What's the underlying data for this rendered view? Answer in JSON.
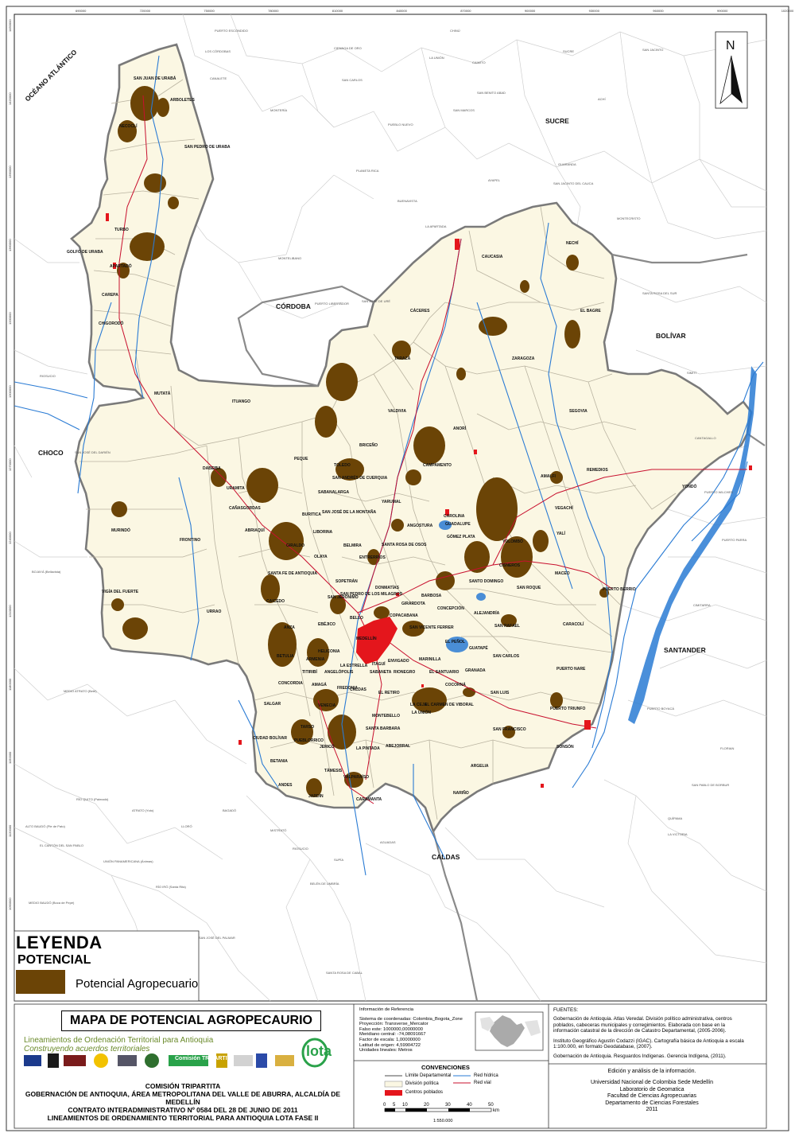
{
  "map": {
    "neatline_top": [
      "690000",
      "720000",
      "750000",
      "780000",
      "810000",
      "840000",
      "870000",
      "900000",
      "930000",
      "960000",
      "990000",
      "1020000"
    ],
    "neatline_left": [
      "1450000",
      "1420000",
      "1390000",
      "1360000",
      "1330000",
      "1300000",
      "1270000",
      "1240000",
      "1210000",
      "1180000",
      "1150000",
      "1120000",
      "1090000"
    ],
    "departments": [
      "SUCRE",
      "CÓRDOBA",
      "BOLÍVAR",
      "SANTANDER",
      "CALDAS",
      "CHOCÓ",
      "OCÉANO ATLÁNTICO"
    ],
    "municipios": [
      "SAN JUAN DE URABÁ",
      "ARBOLETES",
      "NECOCLÍ",
      "SAN PEDRO DE URABÁ",
      "TURBO",
      "APARTADÓ",
      "CAREPA",
      "CHIGORODÓ",
      "MUTATÁ",
      "ITUANGO",
      "DABEIBA",
      "URAMITA",
      "PEQUE",
      "CAÑASGORDAS",
      "FRONTINO",
      "ABRIAQUÍ",
      "GIRALDO",
      "MURINDÓ",
      "VIGÍA DEL FUERTE",
      "URRAO",
      "CAICEDO",
      "ANZÁ",
      "BETULIA",
      "CONCORDIA",
      "SALGAR",
      "CIUDAD BOLÍVAR",
      "BETANIA",
      "ANDES",
      "JARDÍN",
      "HISPANIA",
      "PUEBLORRICO",
      "TARSO",
      "JERICÓ",
      "TÁMESIS",
      "VALPARAÍSO",
      "CARAMANTA",
      "FREDONIA",
      "VENECIA",
      "SANTA BÁRBARA",
      "MONTEBELLO",
      "LA CEJA",
      "ABEJORRAL",
      "EL RETIRO",
      "CALDAS",
      "MEDELLÍN",
      "BELLO",
      "COPACABANA",
      "GIRARDOTA",
      "BARBOSA",
      "SAN VICENTE FERRER",
      "CONCEPCIÓN",
      "ALEJANDRÍA",
      "EL PEÑOL",
      "GUATAPÉ",
      "GRANADA",
      "MARINILLA",
      "RIONEGRO",
      "EL SANTUARIO",
      "COCORNÁ",
      "SAN LUIS",
      "SAN CARLOS",
      "SAN RAFAEL",
      "SAN FRANCISCO",
      "PUERTO TRIUNFO",
      "PUERTO NARE",
      "CARACOLÍ",
      "PUERTO BERRÍO",
      "MACEO",
      "YOLOMBÓ",
      "REMEDIOS",
      "SEGOVIA",
      "AMALFI",
      "VEGACHÍ",
      "YALÍ",
      "YONDÓ",
      "ANORÍ",
      "GUADALUPE",
      "ANGOSTURA",
      "CAMPAMENTO",
      "YARUMAL",
      "BRICEÑO",
      "VALDIVIA",
      "TARAZÁ",
      "CÁCERES",
      "CAUCASIA",
      "NECHÍ",
      "EL BAGRE",
      "ZARAGOZA",
      "TOLEDO",
      "SAN ANDRÉS DE CUERQUIA",
      "SABANALARGA",
      "BURITICÁ",
      "LIBORINA",
      "OLAYA",
      "SAN JOSÉ DE LA MONTAÑA",
      "BELMIRA",
      "ENTRERRÍOS",
      "SANTA ROSA DE OSOS",
      "DONMATÍAS",
      "SANTA FE DE ANTIOQUIA",
      "SOPETRÁN",
      "SAN JERÓNIMO",
      "SAN PEDRO DE LOS MILAGROS",
      "EBÉJICO",
      "ARMENIA",
      "HELICONIA",
      "ANGELÓPOLIS",
      "AMAGÁ",
      "TITIRIBÍ",
      "LA ESTRELLA",
      "SABANETA",
      "ITAGÜÍ",
      "ENVIGADO",
      "CAROLINA",
      "GÓMEZ PLATA",
      "SANTO DOMINGO",
      "CISNEROS",
      "SAN ROQUE",
      "SONSÓN",
      "ARGELIA",
      "NARIÑO",
      "EL CARMEN DE VIBORAL",
      "LA UNIÓN"
    ]
  },
  "legend": {
    "title": "LEYENDA",
    "subtitle": "POTENCIAL",
    "item": "Potencial Agropecuario",
    "color": "#6b4406"
  },
  "titleblock": {
    "title": "MAPA DE POTENCIAL AGROPECAURIO",
    "lineamientos": "Lineamientos de Ordenación Territorial para Antioquia",
    "slogan": "Construyendo acuerdos territoriales",
    "commission": "COMISIÓN TRIPARTITA",
    "line1": "GOBERNACIÓN DE ANTIOQUIA, ÁREA METROPOLITANA DEL VALLE DE ABURRA, ALCALDÍA DE MEDELLÍN",
    "line2": "CONTRATO INTERADMINISTRATIVO  Nº 0584 DEL 28 DE JUNIO DE 2011",
    "line3": "LINEAMIENTOS DE ORDENAMIENTO TERRITORIAL PARA ANTIOQUIA LOTA FASE II",
    "logo_lota": "lota",
    "logo_tripartita": "Comisión TRIPARTITA"
  },
  "reference": {
    "heading": "Información de Referencia",
    "lines": [
      "Sistema de coordenadas: Colombia_Bogota_Zone",
      "Proyección: Transverse_Mercator",
      "Falso este: 1000000,00000000",
      "Meridiano central: -74,08091667",
      "Factor de escala: 1,00000000",
      "Latitud de origen: 4,59904722",
      "Unidades lineales: Metros"
    ]
  },
  "sources": {
    "heading": "FUENTES:",
    "items": [
      "Gobernación de Antioquia. Atlas Veredal. División político administrativa, centros poblados, cabeceras municipales y corregimientos. Elaborada con base en la información catastral de la dirección de Catastro Departamental, (2005-2006).",
      "Instituto  Geográfico Agustín  Codazzi (IGAC). Cartografía básica de Antioquia  a escala 1:100.000, en formato Geodatabase, (2007).",
      "Gobernación de Antioquia. Resguardos Indígenas. Gerencia Indígena, (2011)."
    ]
  },
  "edition": {
    "lines": [
      "Edición y análisis de la información.",
      "",
      "Universidad Nacional de Colombia Sede Medellín",
      "Laboratorio de Geomatica",
      "Facultad de Ciencias Agropecuarias",
      "Departamento de Ciencias Forestales",
      "2011"
    ]
  },
  "conventions": {
    "title": "CONVENCIONES",
    "items": [
      {
        "label": "Límite Departamental",
        "color": "#888888"
      },
      {
        "label": "División política",
        "color": "#fbf7e3"
      },
      {
        "label": "Centros poblados",
        "color": "#e4161c"
      },
      {
        "label": "Red hídrica",
        "color": "#2a7bd4"
      },
      {
        "label": "Red vial",
        "color": "#c8102e"
      }
    ]
  },
  "scale": {
    "ticks": [
      "0",
      "5",
      "10",
      "20",
      "30",
      "40",
      "50"
    ],
    "unit": "km",
    "ratio": "1:550.000"
  },
  "north": "N"
}
